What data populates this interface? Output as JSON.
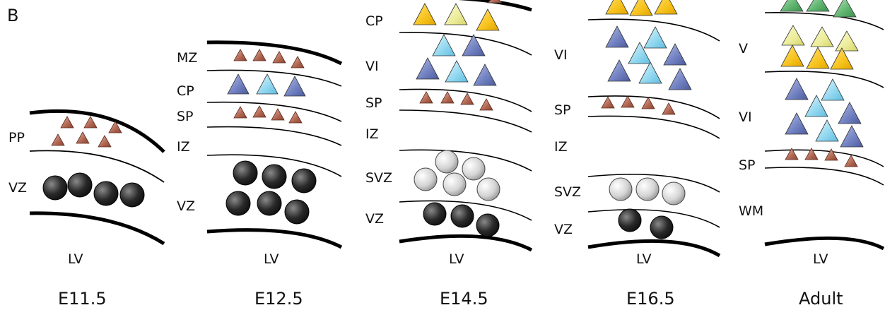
{
  "figure": {
    "panel_letter": "B",
    "colors": {
      "line": "#000000",
      "subplate_neuron": "#b06550",
      "deep_neuron_blue": "#6f7fc0",
      "deep_neuron_cyan": "#8fd6ef",
      "upper_neuron_yellow": "#f7c21c",
      "upper_neuron_pale": "#ecec9a",
      "superficial_neuron_green": "#5fb56f",
      "progenitor_dark": "#1e1e1e",
      "progenitor_light": "#d6d6d6"
    },
    "panels": [
      {
        "stage": "E11.5",
        "ventricle": "LV",
        "layers": [
          {
            "key": "pp",
            "label": "PP"
          },
          {
            "key": "vz",
            "label": "VZ"
          }
        ]
      },
      {
        "stage": "E12.5",
        "ventricle": "LV",
        "layers": [
          {
            "key": "mz",
            "label": "MZ"
          },
          {
            "key": "cp",
            "label": "CP"
          },
          {
            "key": "sp",
            "label": "SP"
          },
          {
            "key": "iz",
            "label": "IZ"
          },
          {
            "key": "vz",
            "label": "VZ"
          }
        ]
      },
      {
        "stage": "E14.5",
        "ventricle": "LV",
        "layers": [
          {
            "key": "cp",
            "label": "CP"
          },
          {
            "key": "vi",
            "label": "VI"
          },
          {
            "key": "sp",
            "label": "SP"
          },
          {
            "key": "iz",
            "label": "IZ"
          },
          {
            "key": "svz",
            "label": "SVZ"
          },
          {
            "key": "vz",
            "label": "VZ"
          }
        ]
      },
      {
        "stage": "E16.5",
        "ventricle": "LV",
        "layers": [
          {
            "key": "vi",
            "label": "VI"
          },
          {
            "key": "sp",
            "label": "SP"
          },
          {
            "key": "iz",
            "label": "IZ"
          },
          {
            "key": "svz",
            "label": "SVZ"
          },
          {
            "key": "vz",
            "label": "VZ"
          }
        ]
      },
      {
        "stage": "Adult",
        "ventricle": "LV",
        "layers": [
          {
            "key": "v",
            "label": "V"
          },
          {
            "key": "vi",
            "label": "VI"
          },
          {
            "key": "sp",
            "label": "SP"
          },
          {
            "key": "wm",
            "label": "WM"
          }
        ]
      }
    ]
  }
}
